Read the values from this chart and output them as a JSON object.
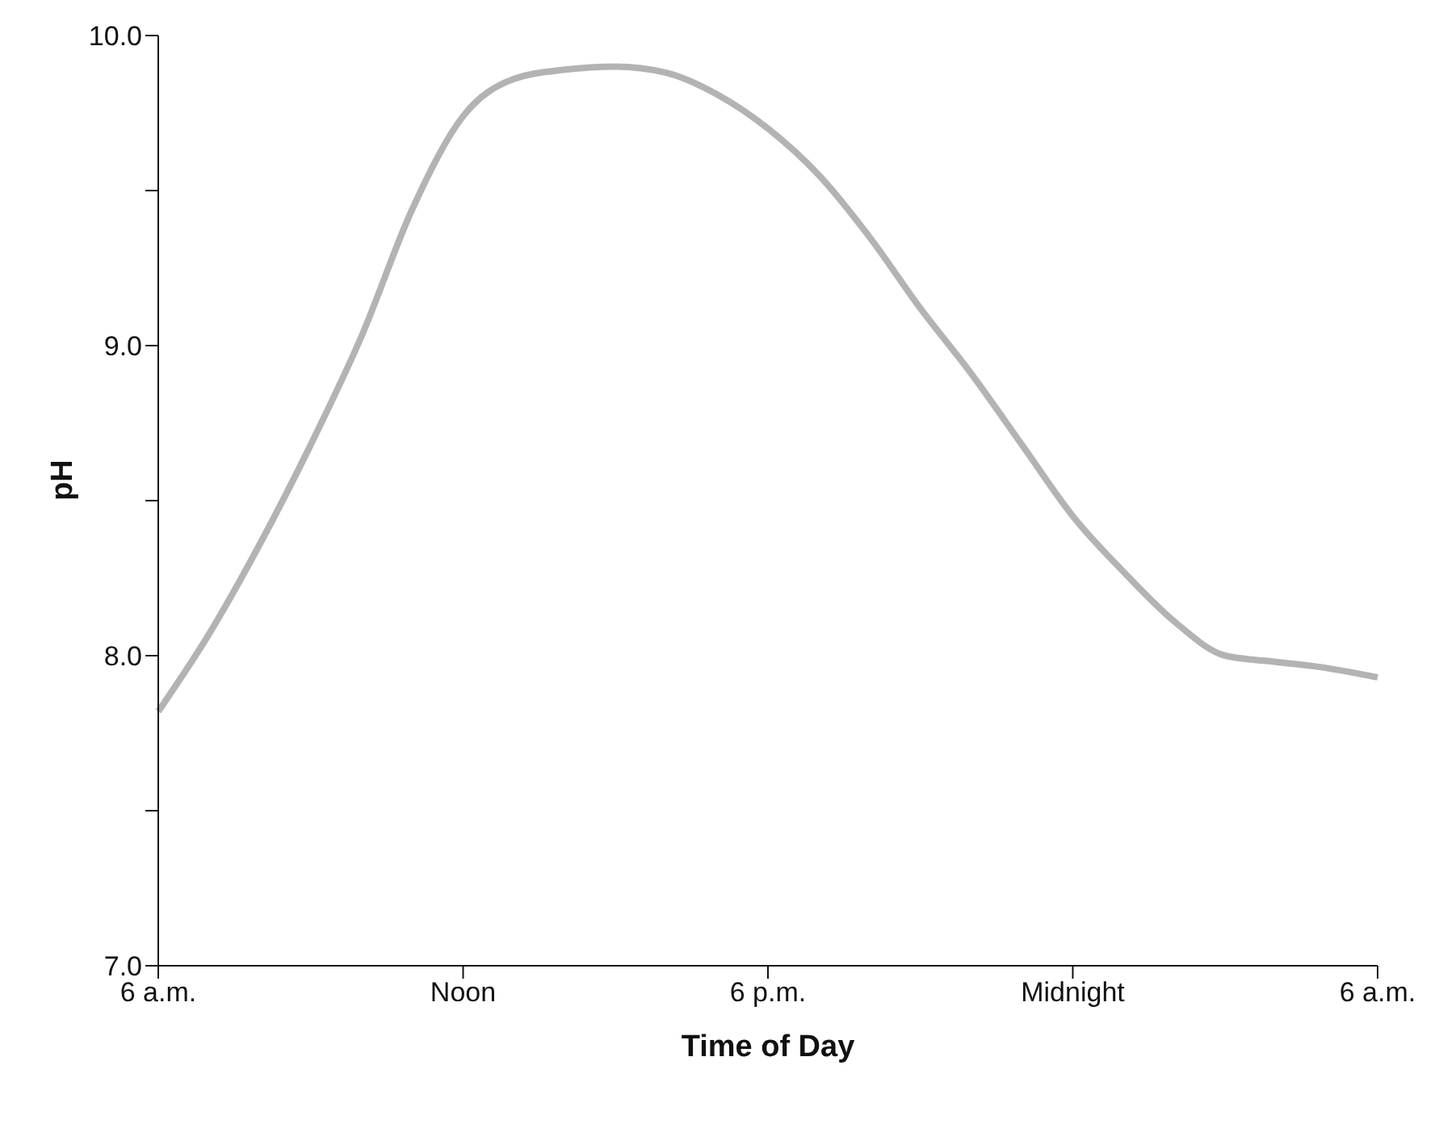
{
  "chart_data": {
    "type": "line",
    "xlabel": "Time of Day",
    "ylabel": "pH",
    "categories": [
      "6 a.m.",
      null,
      null,
      null,
      null,
      null,
      "Noon",
      null,
      null,
      null,
      null,
      null,
      "6 p.m.",
      null,
      null,
      null,
      null,
      null,
      "Midnight",
      null,
      null,
      null,
      null,
      null,
      "6 a.m."
    ],
    "series": [
      {
        "color": "#b3b3b3",
        "values": [
          7.82,
          8.07,
          8.36,
          8.68,
          9.03,
          9.44,
          9.74,
          9.86,
          9.89,
          9.9,
          9.88,
          9.81,
          9.7,
          9.55,
          9.35,
          9.12,
          8.91,
          8.68,
          8.45,
          8.27,
          8.11,
          8.0,
          7.98,
          7.96,
          7.93
        ]
      }
    ],
    "ylim": [
      7,
      10
    ],
    "yticks": [
      {
        "value": 7,
        "label": "7.0"
      },
      {
        "value": 7.5,
        "label": null
      },
      {
        "value": 8,
        "label": "8.0"
      },
      {
        "value": 8.5,
        "label": null
      },
      {
        "value": 9,
        "label": "9.0"
      },
      {
        "value": 9.5,
        "label": null
      },
      {
        "value": 10,
        "label": "10.0"
      }
    ],
    "grid": false,
    "legend": false,
    "marker": "none",
    "line_style": "solid"
  }
}
